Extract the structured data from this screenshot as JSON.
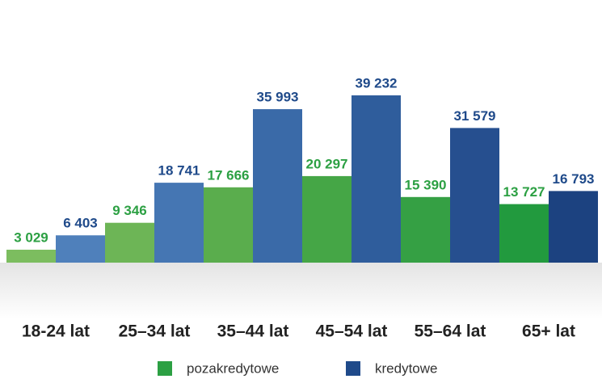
{
  "chart_data": {
    "type": "bar",
    "categories": [
      "18-24 lat",
      "25–34 lat",
      "35–44 lat",
      "45–54 lat",
      "55–64 lat",
      "65+ lat"
    ],
    "series": [
      {
        "name": "pozakredytowe",
        "color": "#2ca043",
        "colors": [
          "#7cbd5f",
          "#6db556",
          "#5aad4d",
          "#45a646",
          "#35a044",
          "#229a3e"
        ],
        "values": [
          3029,
          9346,
          17666,
          20297,
          15390,
          13727
        ],
        "value_labels": [
          "3 029",
          "9 346",
          "17 666",
          "20 297",
          "15 390",
          "13 727"
        ]
      },
      {
        "name": "kredytowe",
        "color": "#1f4a8a",
        "colors": [
          "#4f80bb",
          "#4576b3",
          "#3a6aa8",
          "#2f5d9c",
          "#264f8f",
          "#1c4280"
        ],
        "values": [
          6403,
          18741,
          35993,
          39232,
          31579,
          16793
        ],
        "value_labels": [
          "6 403",
          "18 741",
          "35 993",
          "39 232",
          "31 579",
          "16 793"
        ]
      }
    ]
  }
}
